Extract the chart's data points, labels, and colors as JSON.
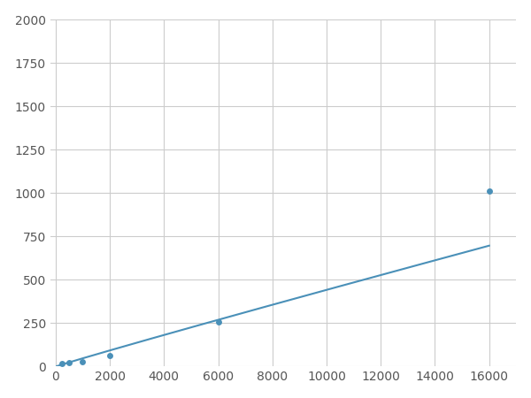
{
  "x": [
    250,
    500,
    1000,
    2000,
    6000,
    16000
  ],
  "y": [
    20,
    25,
    30,
    65,
    255,
    1010
  ],
  "line_color": "#4a90b8",
  "marker_color": "#4a90b8",
  "marker_size": 5,
  "xlim": [
    -200,
    17000
  ],
  "ylim": [
    0,
    2000
  ],
  "xticks": [
    0,
    2000,
    4000,
    6000,
    8000,
    10000,
    12000,
    14000,
    16000
  ],
  "yticks": [
    0,
    250,
    500,
    750,
    1000,
    1250,
    1500,
    1750,
    2000
  ],
  "grid": true,
  "background_color": "#ffffff",
  "figsize": [
    6.0,
    4.5
  ],
  "dpi": 100
}
